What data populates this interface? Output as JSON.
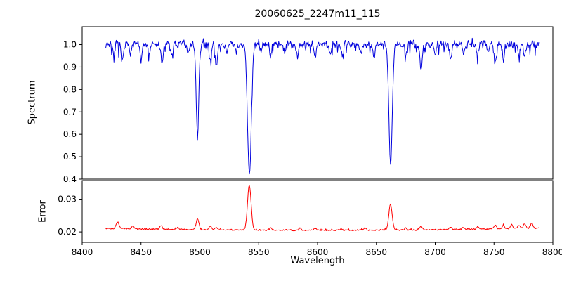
{
  "title": "20060625_2247m11_115",
  "xlabel": "Wavelength",
  "background_color": "#ffffff",
  "axis_color": "#000000",
  "chart_data": [
    {
      "type": "line",
      "series_name": "spectrum",
      "ylabel": "Spectrum",
      "color": "#0000dd",
      "xlim": [
        8400,
        8800
      ],
      "x_start": 8420,
      "x_end": 8788,
      "x_step": 0.5,
      "ylim": [
        0.4,
        1.08
      ],
      "yticks": [
        "0.4",
        "0.5",
        "0.6",
        "0.7",
        "0.8",
        "0.9",
        "1.0"
      ],
      "baseline": 1.0,
      "noise_amplitude": 0.02,
      "absorption_lines": [
        {
          "center": 8498.0,
          "depth": 0.41,
          "sigma": 1.1
        },
        {
          "center": 8542.1,
          "depth": 0.58,
          "sigma": 1.6
        },
        {
          "center": 8662.1,
          "depth": 0.54,
          "sigma": 1.4
        }
      ],
      "minor_lines": [
        [
          8427,
          0.05,
          0.8
        ],
        [
          8434,
          0.08,
          0.9
        ],
        [
          8441,
          0.05,
          0.8
        ],
        [
          8450,
          0.07,
          0.9
        ],
        [
          8457,
          0.04,
          0.8
        ],
        [
          8468,
          0.09,
          0.9
        ],
        [
          8476,
          0.05,
          0.8
        ],
        [
          8490,
          0.04,
          0.8
        ],
        [
          8509,
          0.06,
          0.9
        ],
        [
          8514,
          0.1,
          0.9
        ],
        [
          8523,
          0.05,
          0.8
        ],
        [
          8531,
          0.04,
          0.8
        ],
        [
          8552,
          0.04,
          0.8
        ],
        [
          8560,
          0.05,
          0.8
        ],
        [
          8572,
          0.04,
          0.8
        ],
        [
          8583,
          0.06,
          0.9
        ],
        [
          8598,
          0.06,
          0.9
        ],
        [
          8611,
          0.04,
          0.8
        ],
        [
          8621,
          0.05,
          0.8
        ],
        [
          8637,
          0.04,
          0.8
        ],
        [
          8648,
          0.06,
          0.9
        ],
        [
          8675,
          0.05,
          0.8
        ],
        [
          8688,
          0.12,
          1.0
        ],
        [
          8700,
          0.05,
          0.8
        ],
        [
          8713,
          0.07,
          0.9
        ],
        [
          8724,
          0.05,
          0.8
        ],
        [
          8736,
          0.05,
          0.8
        ],
        [
          8745,
          0.04,
          0.8
        ],
        [
          8751,
          0.09,
          0.9
        ],
        [
          8758,
          0.07,
          0.9
        ],
        [
          8771,
          0.05,
          0.8
        ],
        [
          8776,
          0.06,
          0.9
        ]
      ]
    },
    {
      "type": "line",
      "series_name": "error",
      "ylabel": "Error",
      "color": "#ff0000",
      "xlim": [
        8400,
        8800
      ],
      "x_start": 8420,
      "x_end": 8788,
      "x_step": 0.5,
      "ylim": [
        0.0168,
        0.0357
      ],
      "yticks": [
        "0.02",
        "0.03"
      ],
      "baseline": 0.0205,
      "noise_amplitude": 0.00025,
      "peaks": [
        [
          8430,
          0.002,
          1.2
        ],
        [
          8443,
          0.0008,
          1.0
        ],
        [
          8467,
          0.0012,
          1.0
        ],
        [
          8481,
          0.0006,
          1.0
        ],
        [
          8498,
          0.0033,
          1.2
        ],
        [
          8509,
          0.0012,
          1.0
        ],
        [
          8514,
          0.0009,
          1.0
        ],
        [
          8542,
          0.0138,
          1.5
        ],
        [
          8560,
          0.0007,
          1.0
        ],
        [
          8585,
          0.0006,
          1.0
        ],
        [
          8598,
          0.0006,
          1.0
        ],
        [
          8620,
          0.0005,
          1.0
        ],
        [
          8640,
          0.0006,
          1.0
        ],
        [
          8662,
          0.008,
          1.4
        ],
        [
          8675,
          0.0006,
          1.0
        ],
        [
          8688,
          0.001,
          1.0
        ],
        [
          8713,
          0.0007,
          1.0
        ],
        [
          8724,
          0.0007,
          1.0
        ],
        [
          8736,
          0.0008,
          1.0
        ],
        [
          8751,
          0.0012,
          1.0
        ],
        [
          8758,
          0.001,
          1.0
        ],
        [
          8765,
          0.0012,
          1.0
        ],
        [
          8771,
          0.001,
          1.0
        ],
        [
          8776,
          0.0014,
          1.0
        ],
        [
          8782,
          0.0016,
          1.0
        ]
      ]
    }
  ],
  "xticks": [
    "8400",
    "8450",
    "8500",
    "8550",
    "8600",
    "8650",
    "8700",
    "8750",
    "8800"
  ]
}
